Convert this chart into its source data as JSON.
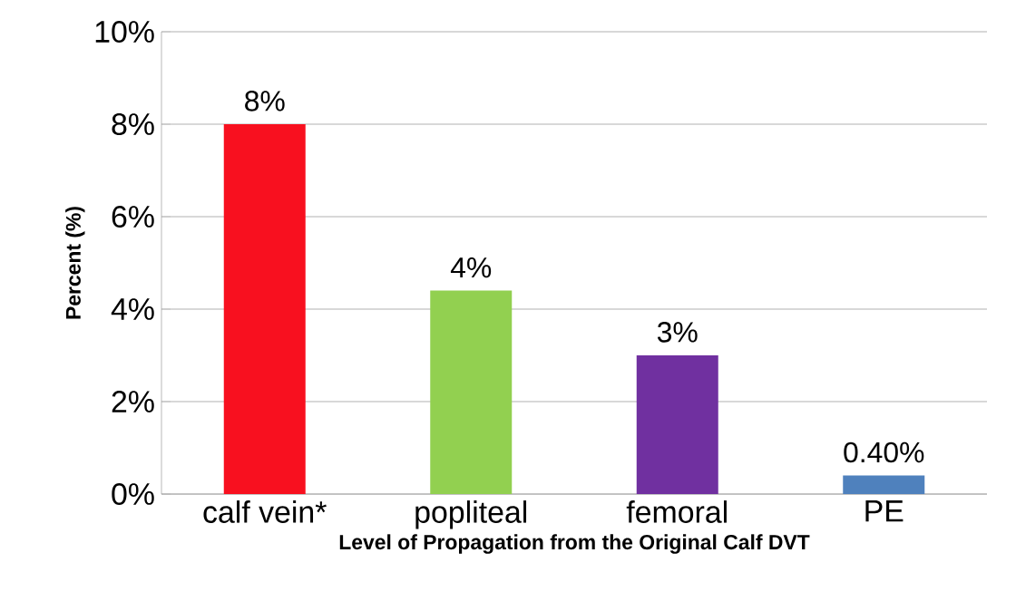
{
  "chart_data": {
    "type": "bar",
    "categories": [
      "calf vein*",
      "popliteal",
      "femoral",
      "PE"
    ],
    "values": [
      8,
      4.4,
      3,
      0.4
    ],
    "colors": [
      "#f8101f",
      "#92d050",
      "#7030a0",
      "#4f81bd"
    ],
    "value_labels": [
      "8%",
      "4%",
      "3%",
      "0.40%"
    ],
    "xlabel": "Level of Propagation from the Original Calf DVT",
    "ylabel": "Percent (%)",
    "ylim": [
      0,
      10
    ],
    "yticks": [
      {
        "value": 0,
        "label": "0%"
      },
      {
        "value": 2,
        "label": "2%"
      },
      {
        "value": 4,
        "label": "4%"
      },
      {
        "value": 6,
        "label": "6%"
      },
      {
        "value": 8,
        "label": "8%"
      },
      {
        "value": 10,
        "label": "10%"
      }
    ],
    "grid": "y"
  }
}
